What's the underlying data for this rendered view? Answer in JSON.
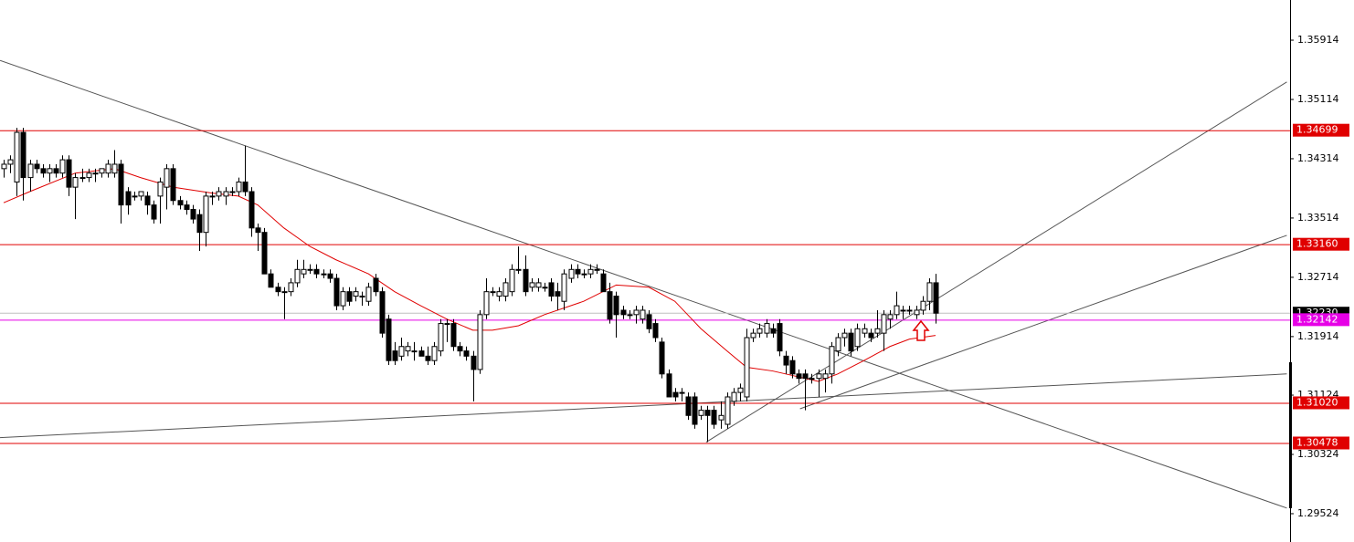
{
  "chart_data": {
    "type": "candlestick",
    "ylim": [
      1.29142,
      1.36456
    ],
    "yticks": [
      1.35914,
      1.35114,
      1.34314,
      1.33514,
      1.32714,
      1.31914,
      1.31124,
      1.30324,
      1.29524
    ],
    "up_color": "#ffffff",
    "down_color": "#000000",
    "ohlc": [
      [
        1.3418,
        1.343,
        1.3406,
        1.3424
      ],
      [
        1.3424,
        1.3436,
        1.3412,
        1.343
      ],
      [
        1.34,
        1.3473,
        1.3381,
        1.3467
      ],
      [
        1.3467,
        1.3473,
        1.3375,
        1.3406
      ],
      [
        1.3406,
        1.343,
        1.3387,
        1.3424
      ],
      [
        1.3424,
        1.343,
        1.3412,
        1.3418
      ],
      [
        1.3418,
        1.3424,
        1.3406,
        1.3412
      ],
      [
        1.3412,
        1.3424,
        1.34,
        1.3418
      ],
      [
        1.3418,
        1.3424,
        1.3406,
        1.3412
      ],
      [
        1.3412,
        1.3436,
        1.3406,
        1.343
      ],
      [
        1.343,
        1.3436,
        1.3381,
        1.3393
      ],
      [
        1.3393,
        1.3412,
        1.335,
        1.3406
      ],
      [
        1.3406,
        1.3418,
        1.34,
        1.3406
      ],
      [
        1.3406,
        1.3418,
        1.34,
        1.3412
      ],
      [
        1.3412,
        1.3418,
        1.34,
        1.3412
      ],
      [
        1.3412,
        1.3418,
        1.3406,
        1.3418
      ],
      [
        1.3412,
        1.343,
        1.3406,
        1.3424
      ],
      [
        1.3412,
        1.3443,
        1.3406,
        1.3424
      ],
      [
        1.3424,
        1.343,
        1.3344,
        1.3369
      ],
      [
        1.3387,
        1.3393,
        1.3356,
        1.3369
      ],
      [
        1.3381,
        1.3387,
        1.3375,
        1.3381
      ],
      [
        1.3381,
        1.3387,
        1.3375,
        1.3387
      ],
      [
        1.3381,
        1.3387,
        1.3356,
        1.3369
      ],
      [
        1.3369,
        1.3375,
        1.3344,
        1.335
      ],
      [
        1.3381,
        1.3406,
        1.3344,
        1.34
      ],
      [
        1.3393,
        1.3424,
        1.3363,
        1.3418
      ],
      [
        1.3418,
        1.3424,
        1.3369,
        1.3375
      ],
      [
        1.3375,
        1.3381,
        1.3363,
        1.3369
      ],
      [
        1.3369,
        1.3375,
        1.3356,
        1.3363
      ],
      [
        1.3363,
        1.3369,
        1.3344,
        1.335
      ],
      [
        1.3356,
        1.3363,
        1.3307,
        1.3332
      ],
      [
        1.3332,
        1.3387,
        1.3313,
        1.3381
      ],
      [
        1.3381,
        1.3387,
        1.3369,
        1.3381
      ],
      [
        1.3381,
        1.3393,
        1.3375,
        1.3387
      ],
      [
        1.3381,
        1.3393,
        1.3369,
        1.3387
      ],
      [
        1.3387,
        1.3393,
        1.3381,
        1.3387
      ],
      [
        1.3387,
        1.3406,
        1.3381,
        1.34
      ],
      [
        1.34,
        1.3449,
        1.3381,
        1.3387
      ],
      [
        1.3387,
        1.3393,
        1.3326,
        1.3338
      ],
      [
        1.3338,
        1.3344,
        1.3307,
        1.3332
      ],
      [
        1.3332,
        1.3338,
        1.3276,
        1.3276
      ],
      [
        1.3276,
        1.3282,
        1.3258,
        1.3258
      ],
      [
        1.3258,
        1.3264,
        1.3246,
        1.3252
      ],
      [
        1.3252,
        1.3258,
        1.3215,
        1.3252
      ],
      [
        1.3252,
        1.327,
        1.3246,
        1.3264
      ],
      [
        1.3264,
        1.3295,
        1.3258,
        1.3282
      ],
      [
        1.3276,
        1.3295,
        1.327,
        1.3282
      ],
      [
        1.3282,
        1.3289,
        1.3276,
        1.3282
      ],
      [
        1.3282,
        1.3289,
        1.327,
        1.3276
      ],
      [
        1.3276,
        1.3282,
        1.327,
        1.3276
      ],
      [
        1.3276,
        1.3282,
        1.3264,
        1.327
      ],
      [
        1.327,
        1.3276,
        1.3227,
        1.3233
      ],
      [
        1.3233,
        1.3258,
        1.3227,
        1.3252
      ],
      [
        1.3252,
        1.3258,
        1.3233,
        1.3239
      ],
      [
        1.3246,
        1.3258,
        1.3239,
        1.3252
      ],
      [
        1.3246,
        1.3252,
        1.3233,
        1.3246
      ],
      [
        1.3239,
        1.3264,
        1.3233,
        1.3258
      ],
      [
        1.327,
        1.3276,
        1.3246,
        1.3252
      ],
      [
        1.3252,
        1.3258,
        1.319,
        1.3196
      ],
      [
        1.3215,
        1.3221,
        1.3153,
        1.3159
      ],
      [
        1.3172,
        1.3184,
        1.3153,
        1.3159
      ],
      [
        1.3165,
        1.319,
        1.3159,
        1.3178
      ],
      [
        1.3172,
        1.3184,
        1.3165,
        1.3178
      ],
      [
        1.3172,
        1.3184,
        1.3159,
        1.3172
      ],
      [
        1.3172,
        1.3178,
        1.3165,
        1.3165
      ],
      [
        1.3165,
        1.3178,
        1.3153,
        1.3159
      ],
      [
        1.3159,
        1.3184,
        1.3153,
        1.3178
      ],
      [
        1.3172,
        1.3215,
        1.3165,
        1.3209
      ],
      [
        1.3209,
        1.3215,
        1.3184,
        1.3209
      ],
      [
        1.3209,
        1.3215,
        1.3172,
        1.3178
      ],
      [
        1.3178,
        1.3184,
        1.3165,
        1.3172
      ],
      [
        1.3172,
        1.3178,
        1.3159,
        1.3165
      ],
      [
        1.3165,
        1.3172,
        1.3104,
        1.3147
      ],
      [
        1.3147,
        1.3227,
        1.3141,
        1.3221
      ],
      [
        1.3221,
        1.327,
        1.3215,
        1.3252
      ],
      [
        1.3252,
        1.3258,
        1.3246,
        1.3252
      ],
      [
        1.3246,
        1.3258,
        1.3239,
        1.3252
      ],
      [
        1.3246,
        1.327,
        1.3239,
        1.3264
      ],
      [
        1.3252,
        1.3289,
        1.3246,
        1.3282
      ],
      [
        1.3282,
        1.3313,
        1.3276,
        1.3282
      ],
      [
        1.3282,
        1.3301,
        1.3246,
        1.3252
      ],
      [
        1.3258,
        1.327,
        1.3252,
        1.3264
      ],
      [
        1.3258,
        1.327,
        1.3252,
        1.3264
      ],
      [
        1.3258,
        1.3264,
        1.3252,
        1.3258
      ],
      [
        1.3264,
        1.327,
        1.3239,
        1.3246
      ],
      [
        1.3252,
        1.3264,
        1.3227,
        1.3246
      ],
      [
        1.3239,
        1.3282,
        1.3227,
        1.3276
      ],
      [
        1.327,
        1.3289,
        1.3264,
        1.3282
      ],
      [
        1.3282,
        1.3289,
        1.327,
        1.3276
      ],
      [
        1.3276,
        1.3282,
        1.327,
        1.3276
      ],
      [
        1.3276,
        1.3289,
        1.327,
        1.3282
      ],
      [
        1.3282,
        1.3289,
        1.3276,
        1.3282
      ],
      [
        1.3276,
        1.3282,
        1.3252,
        1.3252
      ],
      [
        1.3252,
        1.3264,
        1.3209,
        1.3215
      ],
      [
        1.3246,
        1.3252,
        1.319,
        1.3221
      ],
      [
        1.3227,
        1.3233,
        1.3215,
        1.3221
      ],
      [
        1.3221,
        1.3227,
        1.3215,
        1.3221
      ],
      [
        1.3221,
        1.3233,
        1.3209,
        1.3227
      ],
      [
        1.3215,
        1.3233,
        1.3209,
        1.3227
      ],
      [
        1.3221,
        1.3227,
        1.3196,
        1.3202
      ],
      [
        1.3209,
        1.3215,
        1.3184,
        1.319
      ],
      [
        1.3184,
        1.319,
        1.3135,
        1.3141
      ],
      [
        1.3141,
        1.3147,
        1.311,
        1.311
      ],
      [
        1.3116,
        1.3122,
        1.3104,
        1.311
      ],
      [
        1.3116,
        1.3122,
        1.3104,
        1.3116
      ],
      [
        1.311,
        1.3116,
        1.3079,
        1.3085
      ],
      [
        1.311,
        1.3116,
        1.3067,
        1.3073
      ],
      [
        1.3085,
        1.3098,
        1.3079,
        1.3092
      ],
      [
        1.3092,
        1.3098,
        1.3049,
        1.3085
      ],
      [
        1.3092,
        1.3098,
        1.3067,
        1.3073
      ],
      [
        1.3079,
        1.3104,
        1.3067,
        1.3085
      ],
      [
        1.3073,
        1.3116,
        1.3067,
        1.311
      ],
      [
        1.3104,
        1.3122,
        1.3098,
        1.3116
      ],
      [
        1.3116,
        1.3128,
        1.3104,
        1.3122
      ],
      [
        1.311,
        1.3202,
        1.3104,
        1.319
      ],
      [
        1.319,
        1.3202,
        1.3184,
        1.3196
      ],
      [
        1.3196,
        1.3209,
        1.319,
        1.3202
      ],
      [
        1.3196,
        1.3215,
        1.319,
        1.3209
      ],
      [
        1.3202,
        1.3209,
        1.319,
        1.3196
      ],
      [
        1.3209,
        1.3215,
        1.3165,
        1.3172
      ],
      [
        1.3165,
        1.3172,
        1.3141,
        1.3153
      ],
      [
        1.3159,
        1.3165,
        1.3135,
        1.3141
      ],
      [
        1.3141,
        1.3147,
        1.3128,
        1.3135
      ],
      [
        1.3141,
        1.3147,
        1.3092,
        1.3135
      ],
      [
        1.3135,
        1.3141,
        1.3128,
        1.3135
      ],
      [
        1.3135,
        1.3147,
        1.311,
        1.3141
      ],
      [
        1.3135,
        1.3147,
        1.3116,
        1.3141
      ],
      [
        1.3141,
        1.3184,
        1.3128,
        1.3178
      ],
      [
        1.3172,
        1.3196,
        1.3165,
        1.319
      ],
      [
        1.319,
        1.3202,
        1.3178,
        1.3196
      ],
      [
        1.3196,
        1.3202,
        1.3165,
        1.3172
      ],
      [
        1.3178,
        1.3209,
        1.3172,
        1.3202
      ],
      [
        1.3196,
        1.3209,
        1.319,
        1.3202
      ],
      [
        1.3196,
        1.3202,
        1.3184,
        1.319
      ],
      [
        1.3196,
        1.3227,
        1.319,
        1.3202
      ],
      [
        1.3196,
        1.3227,
        1.3172,
        1.3221
      ],
      [
        1.3215,
        1.3227,
        1.3202,
        1.3221
      ],
      [
        1.3221,
        1.3252,
        1.3215,
        1.3233
      ],
      [
        1.3227,
        1.3233,
        1.3215,
        1.3227
      ],
      [
        1.3227,
        1.3233,
        1.3221,
        1.3227
      ],
      [
        1.3221,
        1.3233,
        1.3215,
        1.3227
      ],
      [
        1.3227,
        1.3246,
        1.3221,
        1.3239
      ],
      [
        1.3239,
        1.327,
        1.3227,
        1.3264
      ],
      [
        1.3264,
        1.3276,
        1.3209,
        1.3223
      ]
    ],
    "ma": {
      "color": "#e00000",
      "x": [
        0,
        4,
        11,
        17,
        21,
        26,
        32,
        36,
        39,
        43,
        47,
        51,
        56,
        60,
        64,
        68,
        72,
        75,
        79,
        83,
        89,
        94,
        99,
        103,
        107,
        111,
        114,
        118,
        123,
        125,
        128,
        132,
        136,
        139,
        143
      ],
      "values": [
        1.3372,
        1.3387,
        1.3412,
        1.3418,
        1.3406,
        1.3393,
        1.3385,
        1.3381,
        1.3369,
        1.3338,
        1.3313,
        1.3295,
        1.3276,
        1.3252,
        1.3233,
        1.3215,
        1.32,
        1.32,
        1.3206,
        1.3221,
        1.3239,
        1.3261,
        1.3258,
        1.3239,
        1.3202,
        1.3172,
        1.315,
        1.3145,
        1.3135,
        1.3131,
        1.3141,
        1.3159,
        1.3178,
        1.3188,
        1.3193
      ]
    },
    "trendlines": [
      {
        "x": [
          -0.56,
          196.9
        ],
        "values": [
          1.3564,
          1.296
        ]
      },
      {
        "x": [
          -0.56,
          196.9
        ],
        "values": [
          1.3055,
          1.3141
        ]
      },
      {
        "x": [
          107.8,
          196.9
        ],
        "values": [
          1.3049,
          1.3535
        ]
      },
      {
        "x": [
          122.2,
          196.9
        ],
        "values": [
          1.3094,
          1.3328
        ]
      }
    ],
    "trendline_color": "#555555",
    "current": {
      "value": 1.3223,
      "label": "1.32230",
      "color": "#000000",
      "line_color": "#c0c0c0"
    },
    "levels": [
      {
        "value": 1.34699,
        "color": "#e00000"
      },
      {
        "value": 1.3316,
        "label": "1.33160",
        "color": "#e00000"
      },
      {
        "value": 1.3102,
        "label": "1.31020",
        "color": "#e00000"
      },
      {
        "value": 1.30478,
        "color": "#e00000"
      },
      {
        "value": 1.32142,
        "color": "#e600e6"
      }
    ]
  }
}
